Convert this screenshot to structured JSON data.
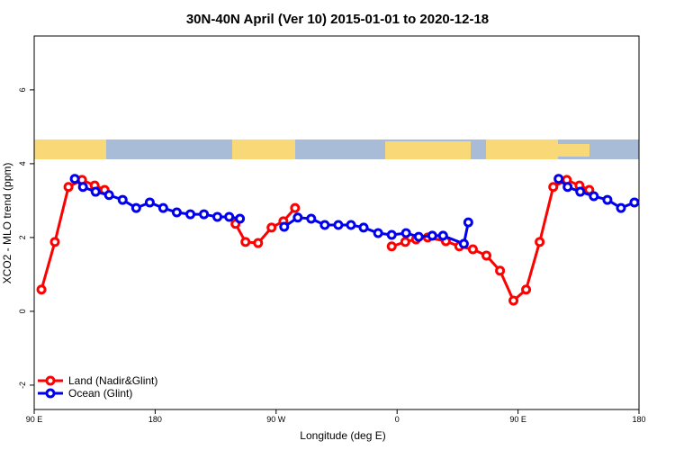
{
  "chart_data": {
    "type": "line",
    "title": "30N-40N April (Ver 10)   2015-01-01 to 2020-12-18",
    "x_label": "Longitude (deg E)",
    "y_label": "XCO2 - MLO trend (ppm)",
    "xlim": [
      90,
      540
    ],
    "xticks": [
      {
        "value": 90,
        "label": "90 E"
      },
      180,
      {
        "value": 270,
        "label": "90 W"
      },
      {
        "value": 360,
        "label": "0"
      },
      {
        "value": 450,
        "label": "90 E"
      },
      {
        "value": 540,
        "label": "180"
      }
    ],
    "ylim": [
      -2.66,
      7.46
    ],
    "yticks": [
      -2,
      0,
      2,
      4,
      6
    ],
    "legend": "bottom-left",
    "series": [
      {
        "name": "Land (Nadir&Glint)",
        "color": "#ff0000",
        "x": [
          95.4,
          105.4,
          115.5,
          125.6,
          135,
          142.4,
          null,
          239.8,
          247.2,
          256.6,
          266.6,
          275.4,
          284.1,
          null,
          356,
          366.1,
          374.1,
          382.8,
          396.3,
          406.3,
          416.4,
          426.5,
          436.6,
          446.6,
          456,
          466.1,
          476.2,
          486.3,
          495.7,
          503
        ],
        "values": [
          0.59,
          1.88,
          3.37,
          3.56,
          3.41,
          3.29,
          null,
          2.37,
          1.88,
          1.85,
          2.27,
          2.44,
          2.8,
          null,
          1.76,
          1.88,
          1.95,
          2.0,
          1.9,
          1.76,
          1.68,
          1.51,
          1.1,
          0.29,
          0.59,
          1.88,
          3.37,
          3.56,
          3.41,
          3.29
        ]
      },
      {
        "name": "Ocean (Glint)",
        "color": "#0000ee",
        "x": [
          120.2,
          126.3,
          135.7,
          145.7,
          155.8,
          165.9,
          176,
          186,
          196.1,
          206.2,
          216.3,
          226.3,
          235.1,
          243.1,
          null,
          276,
          286.1,
          296.1,
          306.2,
          316.3,
          325.7,
          335.1,
          345.9,
          356,
          366.7,
          376.1,
          386.2,
          394.2,
          409.7,
          413,
          null,
          480.2,
          486.9,
          496.3,
          506.4,
          516.5,
          526.6,
          536.6
        ],
        "values": [
          3.59,
          3.37,
          3.24,
          3.15,
          3.02,
          2.8,
          2.95,
          2.8,
          2.68,
          2.63,
          2.63,
          2.56,
          2.56,
          2.51,
          null,
          2.29,
          2.54,
          2.51,
          2.34,
          2.34,
          2.34,
          2.27,
          2.12,
          2.07,
          2.12,
          2.02,
          2.05,
          2.05,
          1.83,
          2.41,
          null,
          3.59,
          3.37,
          3.24,
          3.12,
          3.02,
          2.8,
          2.95
        ]
      }
    ]
  }
}
